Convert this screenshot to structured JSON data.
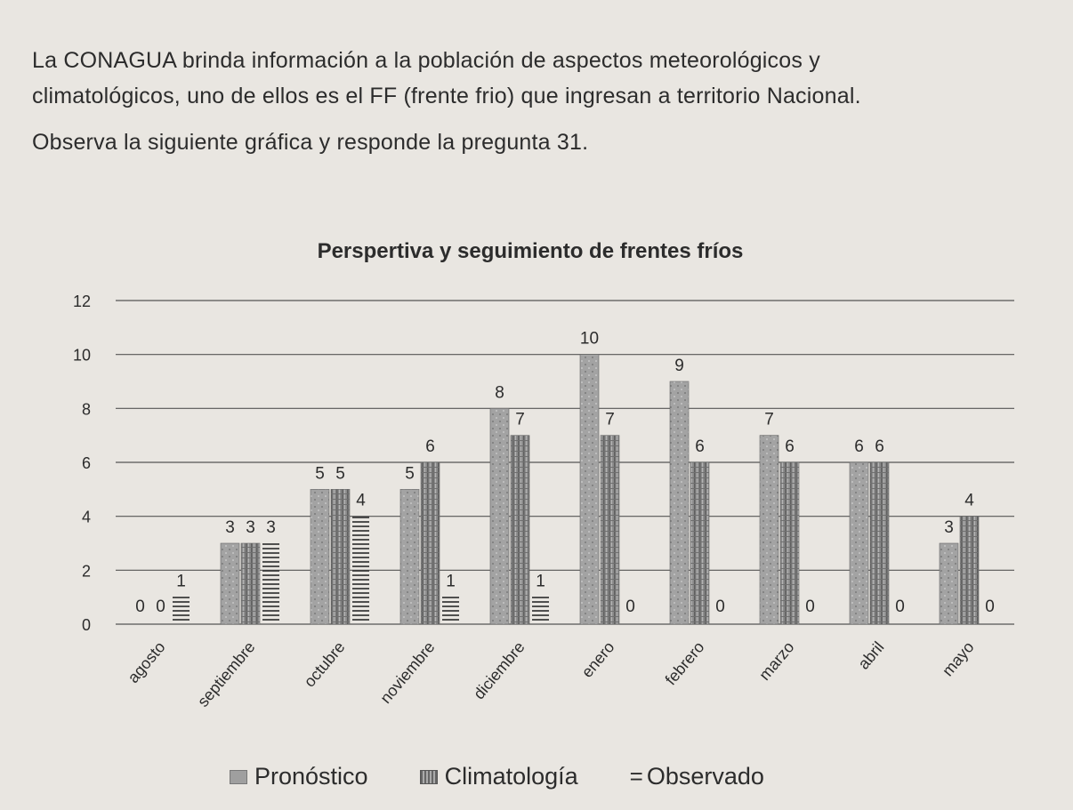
{
  "intro": {
    "line1": "La CONAGUA brinda información a la población de aspectos meteorológicos y",
    "line2": "climatológicos, uno de ellos es el FF (frente frio) que ingresan a territorio Nacional.",
    "line3": "Observa la siguiente gráfica y responde la pregunta 31."
  },
  "legend": {
    "pronostico": "Pronóstico",
    "climatologia": "Climatología",
    "observado_symbol": "=",
    "observado": "Observado"
  },
  "colors": {
    "pronostico": "#9f9f9f",
    "climatologia": "#8a8a8a",
    "observado": "#3a3a3a",
    "gridline": "#555555",
    "background": "#e9e6e1"
  },
  "chart_data": {
    "type": "bar",
    "title": "Perspertiva y  seguimiento de frentes fríos",
    "categories": [
      "agosto",
      "septiembre",
      "octubre",
      "noviembre",
      "diciembre",
      "enero",
      "febrero",
      "marzo",
      "abril",
      "mayo"
    ],
    "series": [
      {
        "name": "Pronóstico",
        "values": [
          0,
          3,
          5,
          5,
          8,
          10,
          9,
          7,
          6,
          3
        ]
      },
      {
        "name": "Climatología",
        "values": [
          0,
          3,
          5,
          6,
          7,
          7,
          6,
          6,
          6,
          4
        ]
      },
      {
        "name": "Observado",
        "values": [
          1,
          3,
          4,
          1,
          1,
          0,
          0,
          0,
          0,
          0
        ]
      }
    ],
    "yticks": [
      0,
      2,
      4,
      6,
      8,
      10,
      12
    ],
    "ylim": [
      0,
      12
    ],
    "grid": true,
    "legend_position": "bottom"
  }
}
